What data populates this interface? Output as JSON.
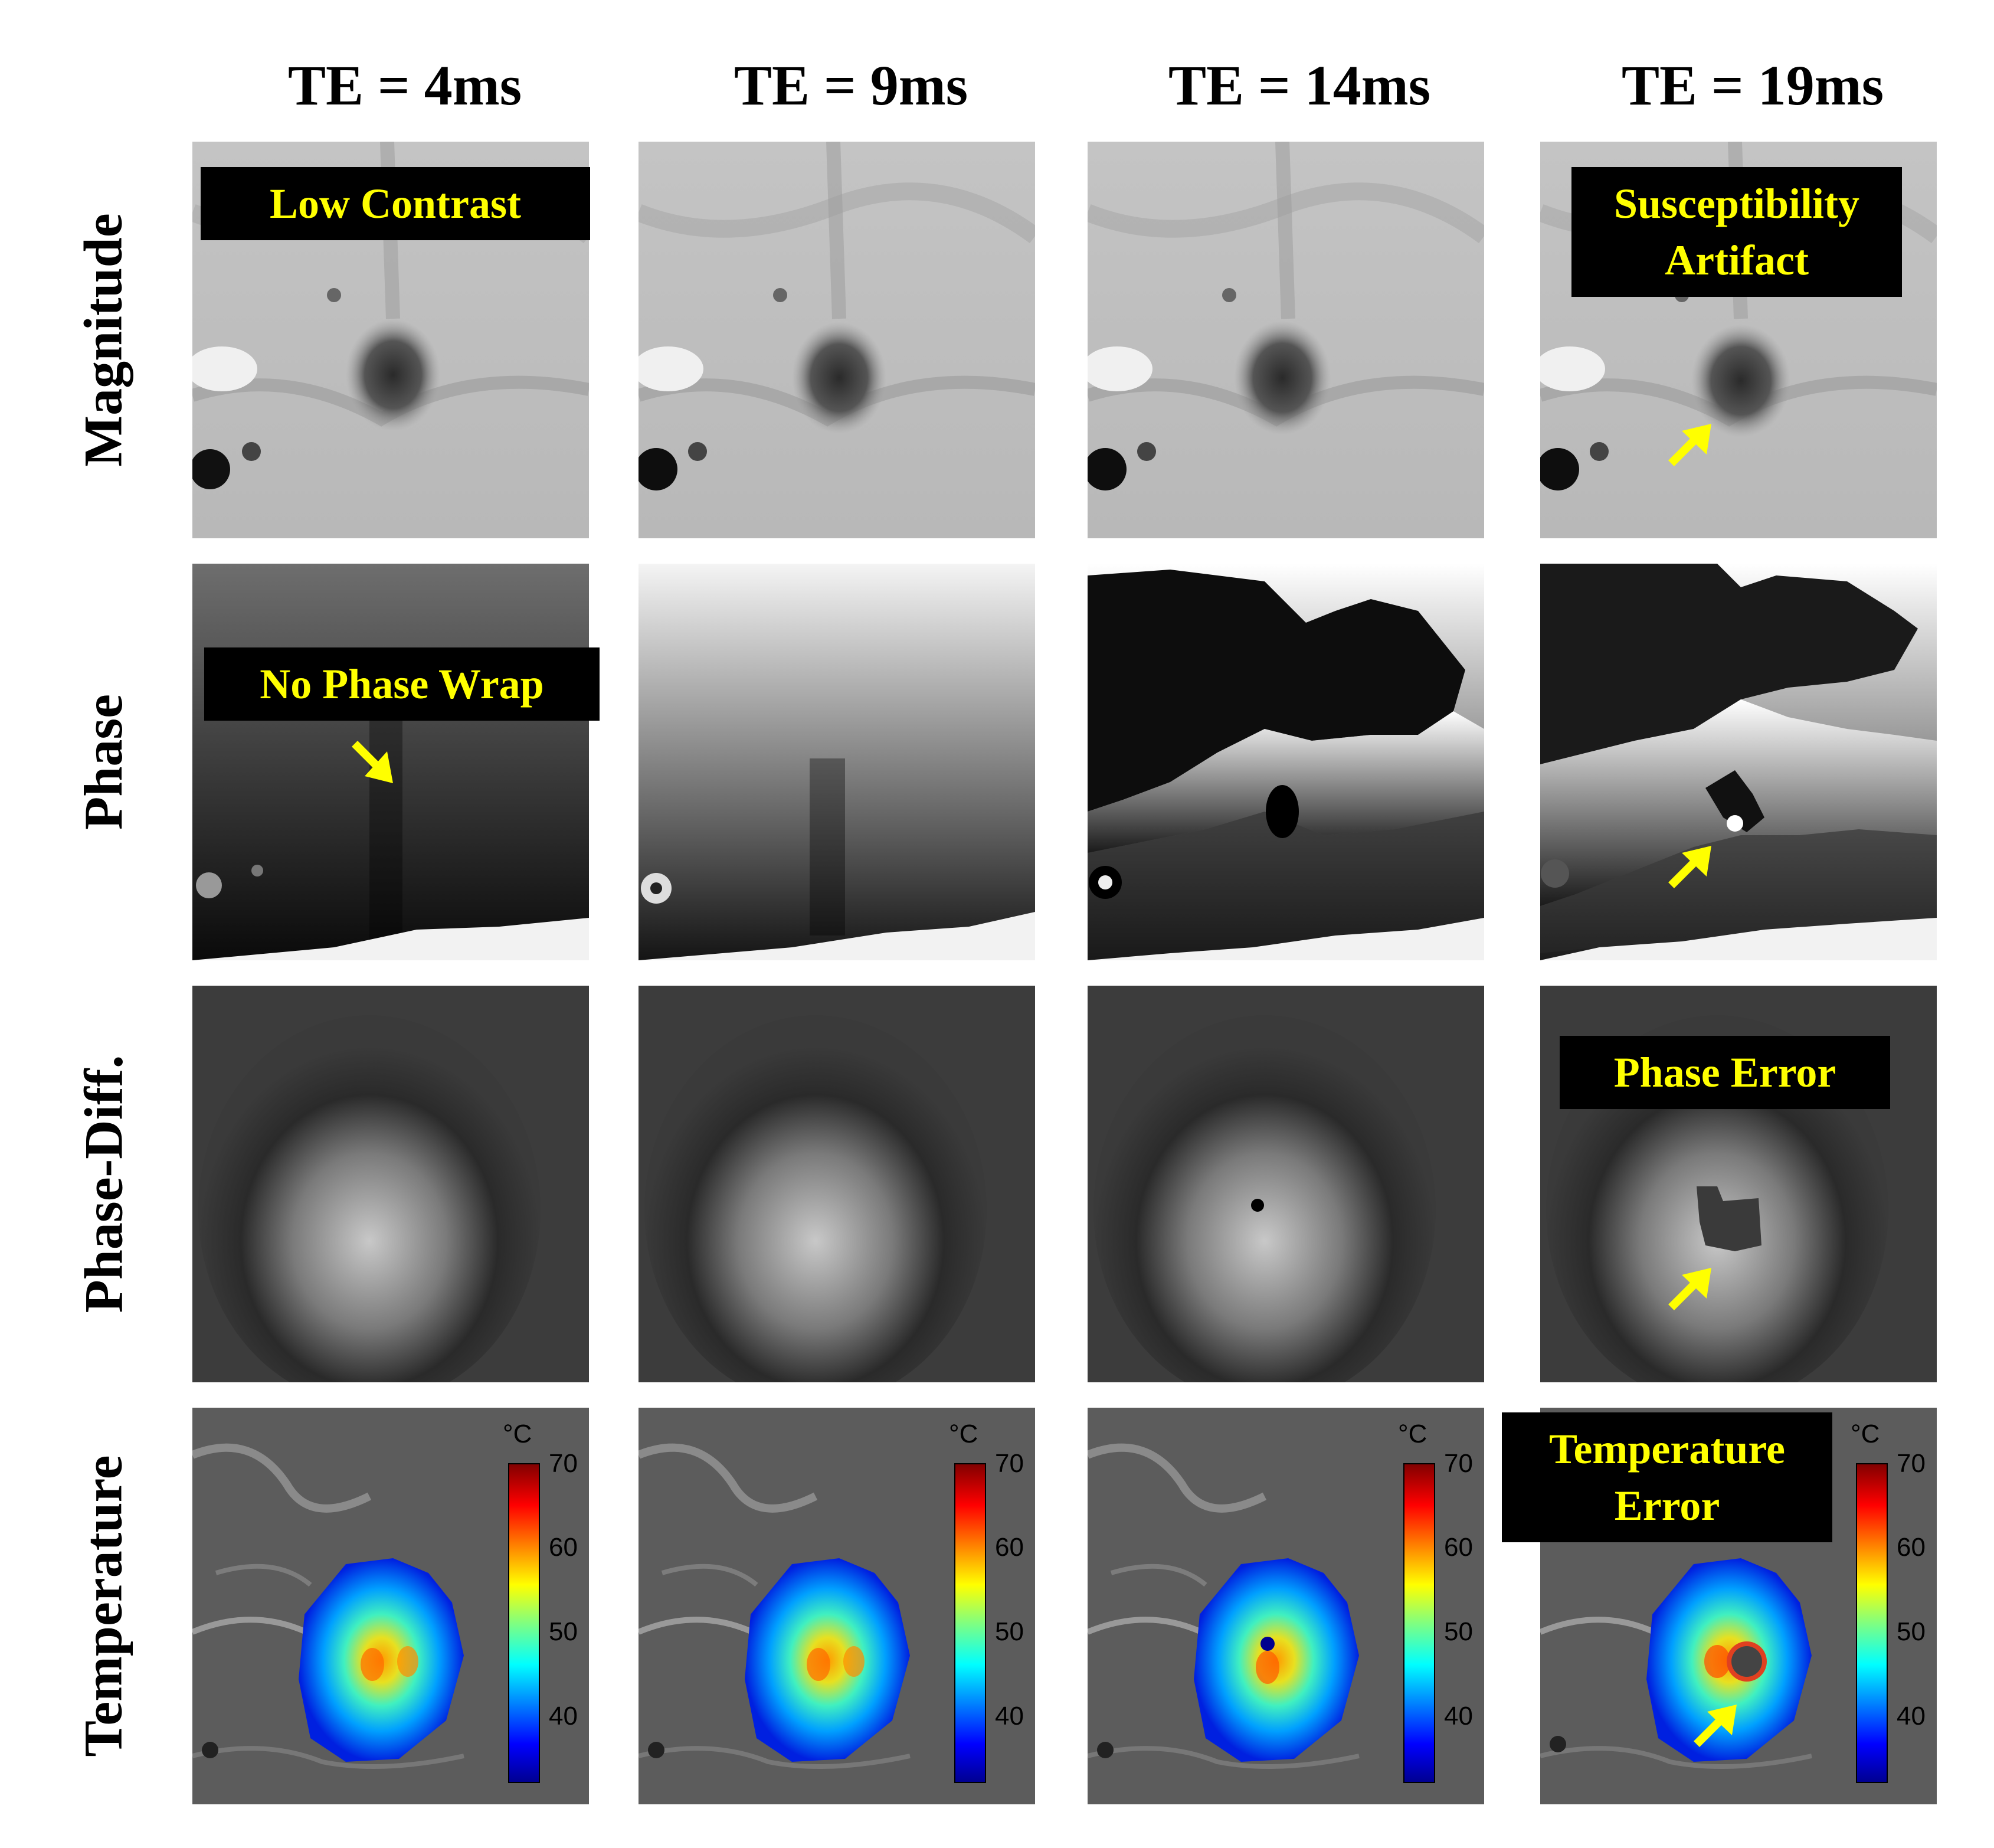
{
  "columns": [
    "TE = 4ms",
    "TE = 9ms",
    "TE = 14ms",
    "TE = 19ms"
  ],
  "rows": [
    "Magnitude",
    "Phase",
    "Phase-Diff.",
    "Temperature"
  ],
  "annotations": {
    "low_contrast": "Low Contrast",
    "susceptibility_artifact": "Susceptibility Artifact",
    "no_phase_wrap": "No Phase Wrap",
    "phase_error": "Phase Error",
    "temperature_error": "Temperature Error"
  },
  "colorbar": {
    "unit": "°C",
    "ticks": [
      "70",
      "60",
      "50",
      "40"
    ],
    "colormap": "jet",
    "range": [
      35,
      70
    ]
  },
  "colors": {
    "annotation_text": "#ffff00",
    "annotation_bg": "#000000",
    "arrow": "#ffff00"
  }
}
